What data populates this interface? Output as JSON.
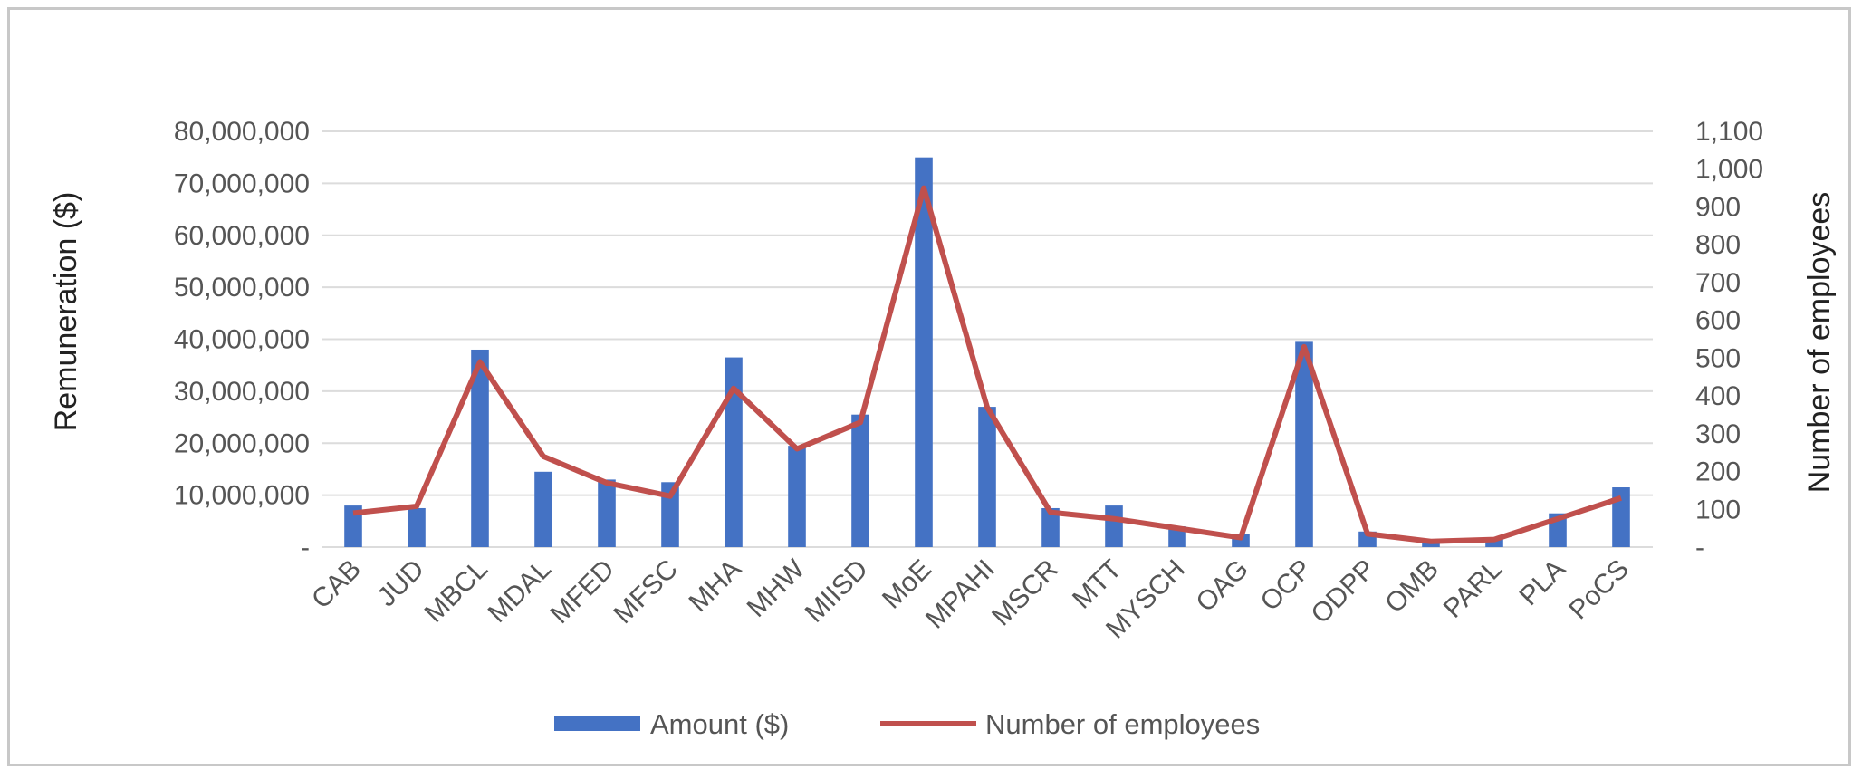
{
  "chart_data": {
    "type": "bar",
    "title": "",
    "categories": [
      "CAB",
      "JUD",
      "MBCL",
      "MDAL",
      "MFED",
      "MFSC",
      "MHA",
      "MHW",
      "MIISD",
      "MoE",
      "MPAHI",
      "MSCR",
      "MTT",
      "MYSCH",
      "OAG",
      "OCP",
      "ODPP",
      "OMB",
      "PARL",
      "PLA",
      "PoCS"
    ],
    "series": [
      {
        "name": "Amount ($)",
        "type": "bar",
        "axis": "left",
        "color": "#4472c4",
        "values": [
          8000000,
          7500000,
          38000000,
          14500000,
          13000000,
          12500000,
          36500000,
          19500000,
          25500000,
          75000000,
          27000000,
          7500000,
          8000000,
          4000000,
          2500000,
          39500000,
          3000000,
          1000000,
          1500000,
          6500000,
          11500000
        ]
      },
      {
        "name": "Number of employees",
        "type": "line",
        "axis": "right",
        "color": "#c0504d",
        "values": [
          90,
          108,
          490,
          240,
          170,
          135,
          420,
          260,
          330,
          950,
          370,
          92,
          75,
          50,
          25,
          530,
          35,
          15,
          20,
          75,
          130
        ]
      }
    ],
    "y_left": {
      "label": "Remuneration ($)",
      "min": 0,
      "max": 80000000,
      "ticks": [
        0,
        10000000,
        20000000,
        30000000,
        40000000,
        50000000,
        60000000,
        70000000,
        80000000
      ],
      "tick_labels": [
        "-",
        "10,000,000",
        "20,000,000",
        "30,000,000",
        "40,000,000",
        "50,000,000",
        "60,000,000",
        "70,000,000",
        "80,000,000"
      ]
    },
    "y_right": {
      "label": "Number of employees",
      "min": 0,
      "max": 1100,
      "ticks": [
        0,
        100,
        200,
        300,
        400,
        500,
        600,
        700,
        800,
        900,
        1000,
        1100
      ],
      "tick_labels": [
        "-",
        "100",
        "200",
        "300",
        "400",
        "500",
        "600",
        "700",
        "800",
        "900",
        "1,000",
        "1,100"
      ]
    },
    "grid": true,
    "legend_position": "bottom"
  }
}
